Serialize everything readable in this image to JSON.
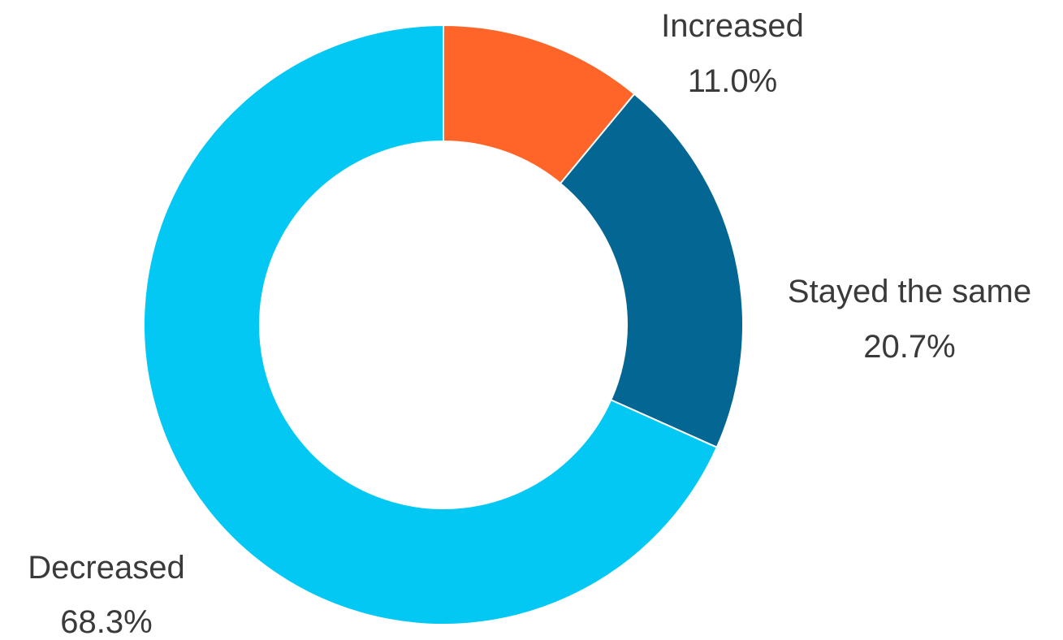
{
  "chart_data": {
    "type": "pie",
    "variant": "donut",
    "title": "",
    "unit": "%",
    "slices": [
      {
        "label": "Increased",
        "value": 11.0,
        "display": "11.0%",
        "color": "#FF6428"
      },
      {
        "label": "Stayed the same",
        "value": 20.7,
        "display": "20.7%",
        "color": "#036693"
      },
      {
        "label": "Decreased",
        "value": 68.3,
        "display": "68.3%",
        "color": "#03C8F3"
      }
    ],
    "start_angle_deg": 0,
    "direction": "clockwise",
    "legend": "none",
    "data_labels": "outside"
  }
}
